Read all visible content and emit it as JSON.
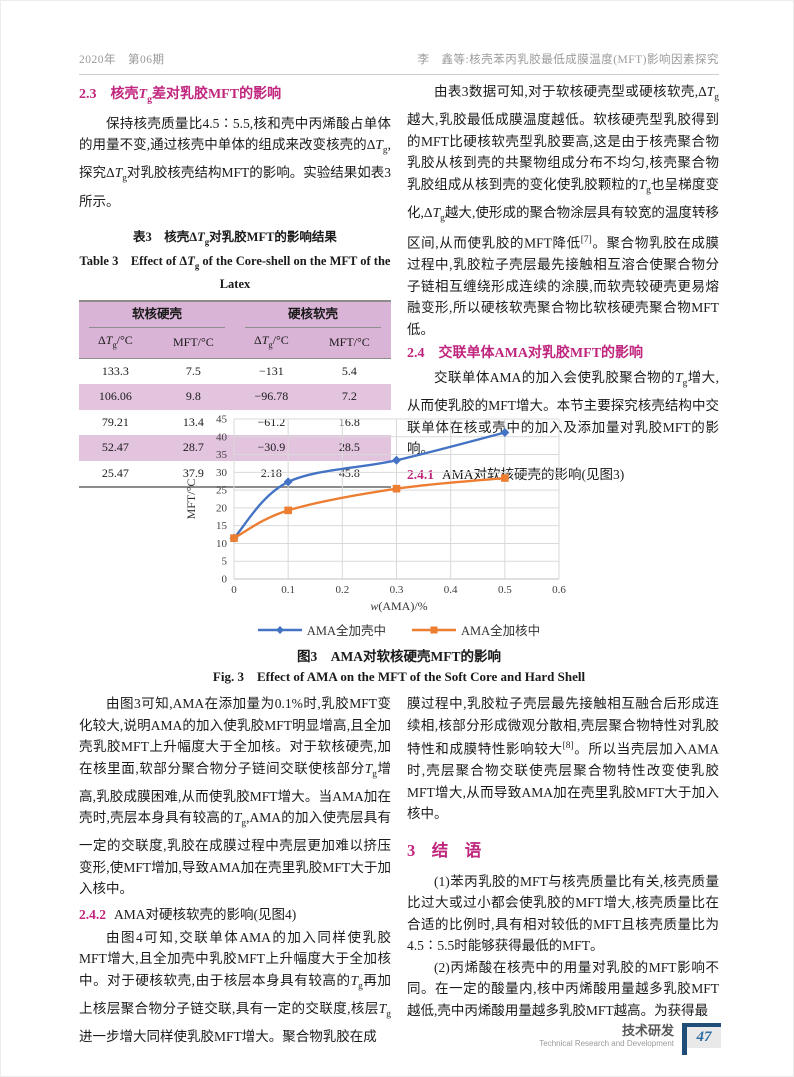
{
  "colors": {
    "heading": "#c0267e",
    "table_header_bg": "#dab4d6",
    "table_alt_bg": "#e3c4df",
    "series_shell_blue": "#4472c4",
    "series_core_orange": "#ed7d31",
    "footer_blue": "#1f4e79",
    "page_number_blue": "#2e6da4",
    "gridline": "#d9d9d9"
  },
  "header": {
    "left": "2020年　第06期",
    "right": "李　鑫等:核壳苯丙乳胶最低成膜温度(MFT)影响因素探究"
  },
  "sections": {
    "s23_heading": "2.3　核壳<i>T</i><sub>g</sub>差对乳胶MFT的影响",
    "s23_para": "保持核壳质量比4.5∶5.5,核和壳中丙烯酸占单体的用量不变,通过核壳中单体的组成来改变核壳的Δ<i>T</i><sub>g</sub>,探究Δ<i>T</i><sub>g</sub>对乳胶核壳结构MFT的影响。实验结果如表3所示。",
    "tr_para1": "由表3数据可知,对于软核硬壳型或硬核软壳,Δ<i>T</i><sub>g</sub>越大,乳胶最低成膜温度越低。软核硬壳型乳胶得到的MFT比硬核软壳型乳胶要高,这是由于核壳聚合物乳胶从核到壳的共聚物组成分布不均匀,核壳聚合物乳胶组成从核到壳的变化使乳胶颗粒的<i>T</i><sub>g</sub>也呈梯度变化,Δ<i>T</i><sub>g</sub>越大,使形成的聚合物涂层具有较宽的温度转移区间,从而使乳胶的MFT降低<sup>[7]</sup>。聚合物乳胶在成膜过程中,乳胶粒子壳层最先接触相互溶合使聚合物分子链相互缠绕形成连续的涂膜,而软壳较硬壳更易熔融变形,所以硬核软壳聚合物比软核硬壳聚合物MFT低。",
    "s24_heading": "2.4　交联单体AMA对乳胶MFT的影响",
    "s24_para": "交联单体AMA的加入会使乳胶聚合物的<i>T</i><sub>g</sub>增大,从而使乳胶的MFT增大。本节主要探究核壳结构中交联单体在核或壳中的加入及添加量对乳胶MFT的影响。",
    "s241_num": "2.4.1",
    "s241_text": "AMA对软核硬壳的影响(见图3)",
    "bl_para1": "由图3可知,AMA在添加量为0.1%时,乳胶MFT变化较大,说明AMA的加入使乳胶MFT明显增高,且全加壳乳胶MFT上升幅度大于全加核。对于软核硬壳,加在核里面,软部分聚合物分子链间交联使核部分<i>T</i><sub>g</sub>增高,乳胶成膜困难,从而使乳胶MFT增大。当AMA加在壳时,壳层本身具有较高的<i>T</i><sub>g</sub>,AMA的加入使壳层具有一定的交联度,乳胶在成膜过程中壳层更加难以挤压变形,使MFT增加,导致AMA加在壳里乳胶MFT大于加入核中。",
    "s242_num": "2.4.2",
    "s242_text": "AMA对硬核软壳的影响(见图4)",
    "bl_para2": "由图4可知,交联单体AMA的加入同样使乳胶MFT增大,且全加壳中乳胶MFT上升幅度大于全加核中。对于硬核软壳,由于核层本身具有较高的<i>T</i><sub>g</sub>再加上核层聚合物分子链交联,具有一定的交联度,核层<i>T</i><sub>g</sub>进一步增大同样使乳胶MFT增大。聚合物乳胶在成",
    "br_para1": "膜过程中,乳胶粒子壳层最先接触相互融合后形成连续相,核部分形成微观分散相,壳层聚合物特性对乳胶特性和成膜特性影响较大<sup>[8]</sup>。所以当壳层加入AMA时,壳层聚合物交联使壳层聚合物特性改变使乳胶MFT增大,从而导致AMA加在壳里乳胶MFT大于加入核中。",
    "s3_heading": "3　结　语",
    "br_para2": "(1)苯丙乳胶的MFT与核壳质量比有关,核壳质量比过大或过小都会使乳胶的MFT增大,核壳质量比在合适的比例时,具有相对较低的MFT且核壳质量比为4.5∶5.5时能够获得最低的MFT。",
    "br_para3": "(2)丙烯酸在核壳中的用量对乳胶的MFT影响不同。在一定的酸量内,核中丙烯酸用量越多乳胶MFT越低,壳中丙烯酸用量越多乳胶MFT越高。为获得最"
  },
  "table": {
    "title_zh": "表3　核壳Δ<i>T</i><sub>g</sub>对乳胶MFT的影响结果",
    "title_en": "Table 3　Effect of Δ<i>T</i><sub>g</sub> of the Core-shell on the MFT of the Latex",
    "group_headers": [
      "软核硬壳",
      "硬核软壳"
    ],
    "col_headers": [
      "Δ<i>T</i><sub>g</sub>/°C",
      "MFT/°C",
      "Δ<i>T</i><sub>g</sub>/°C",
      "MFT/°C"
    ],
    "rows": [
      [
        "133.3",
        "7.5",
        "−131",
        "5.4"
      ],
      [
        "106.06",
        "9.8",
        "−96.78",
        "7.2"
      ],
      [
        "79.21",
        "13.4",
        "−61.2",
        "16.8"
      ],
      [
        "52.47",
        "28.7",
        "−30.9",
        "28.5"
      ],
      [
        "25.47",
        "37.9",
        "2.18",
        "45.8"
      ]
    ]
  },
  "figure": {
    "caption_zh": "图3　AMA对软核硬壳MFT的影响",
    "caption_en": "Fig. 3　Effect of AMA on the MFT of the Soft Core and Hard Shell"
  },
  "chart_data": {
    "type": "line",
    "x": [
      0,
      0.1,
      0.3,
      0.5
    ],
    "series": [
      {
        "name": "AMA全加壳中",
        "values": [
          11.5,
          27.3,
          33.4,
          41.2
        ],
        "color": "#4472c4",
        "marker": "diamond"
      },
      {
        "name": "AMA全加核中",
        "values": [
          11.5,
          19.3,
          25.4,
          28.4
        ],
        "color": "#ed7d31",
        "marker": "square"
      }
    ],
    "xlabel": "<i>w</i>(AMA)/%",
    "ylabel": "MFT/°C",
    "xlim": [
      0,
      0.6
    ],
    "ylim": [
      0,
      45
    ],
    "x_tick_step": 0.1,
    "y_tick_step": 5,
    "grid": true,
    "legend_position": "bottom"
  },
  "footer": {
    "zh": "技术研发",
    "en": "Technical Research and Development",
    "page_number": "47"
  }
}
